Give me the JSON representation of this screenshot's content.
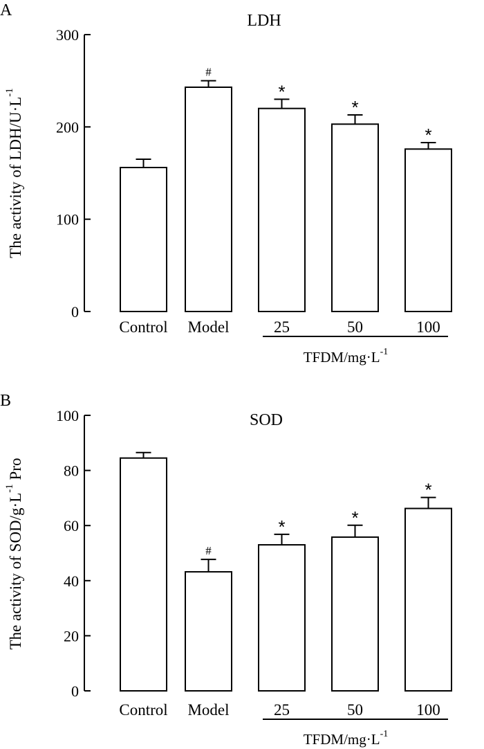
{
  "chart_data": [
    {
      "type": "bar",
      "panel": "A",
      "title": "LDH",
      "ylabel": "The activity of LDH/U·L",
      "ylabel_sup": "-1",
      "categories": [
        "Control",
        "Model",
        "25",
        "50",
        "100"
      ],
      "values": [
        156,
        243,
        220,
        203,
        176
      ],
      "errors": [
        9,
        7,
        10,
        10,
        7
      ],
      "significance": [
        "",
        "#",
        "*",
        "*",
        "*"
      ],
      "ylim": [
        0,
        300
      ],
      "yticks": [
        0,
        100,
        200,
        300
      ],
      "group_label": "TFDM/mg·L",
      "group_label_sup": "-1",
      "group_categories": [
        "25",
        "50",
        "100"
      ]
    },
    {
      "type": "bar",
      "panel": "B",
      "title": "SOD",
      "ylabel": "The activity of SOD/g·L",
      "ylabel_sup": "-1",
      "ylabel_suffix": " Pro",
      "categories": [
        "Control",
        "Model",
        "25",
        "50",
        "100"
      ],
      "values": [
        84.5,
        43.2,
        53,
        55.8,
        66.2
      ],
      "errors": [
        2,
        4.5,
        3.8,
        4.3,
        4
      ],
      "significance": [
        "",
        "#",
        "*",
        "*",
        "*"
      ],
      "ylim": [
        0,
        100
      ],
      "yticks": [
        0,
        20,
        40,
        60,
        80,
        100
      ],
      "group_label": "TFDM/mg·L",
      "group_label_sup": "-1",
      "group_categories": [
        "25",
        "50",
        "100"
      ]
    }
  ]
}
